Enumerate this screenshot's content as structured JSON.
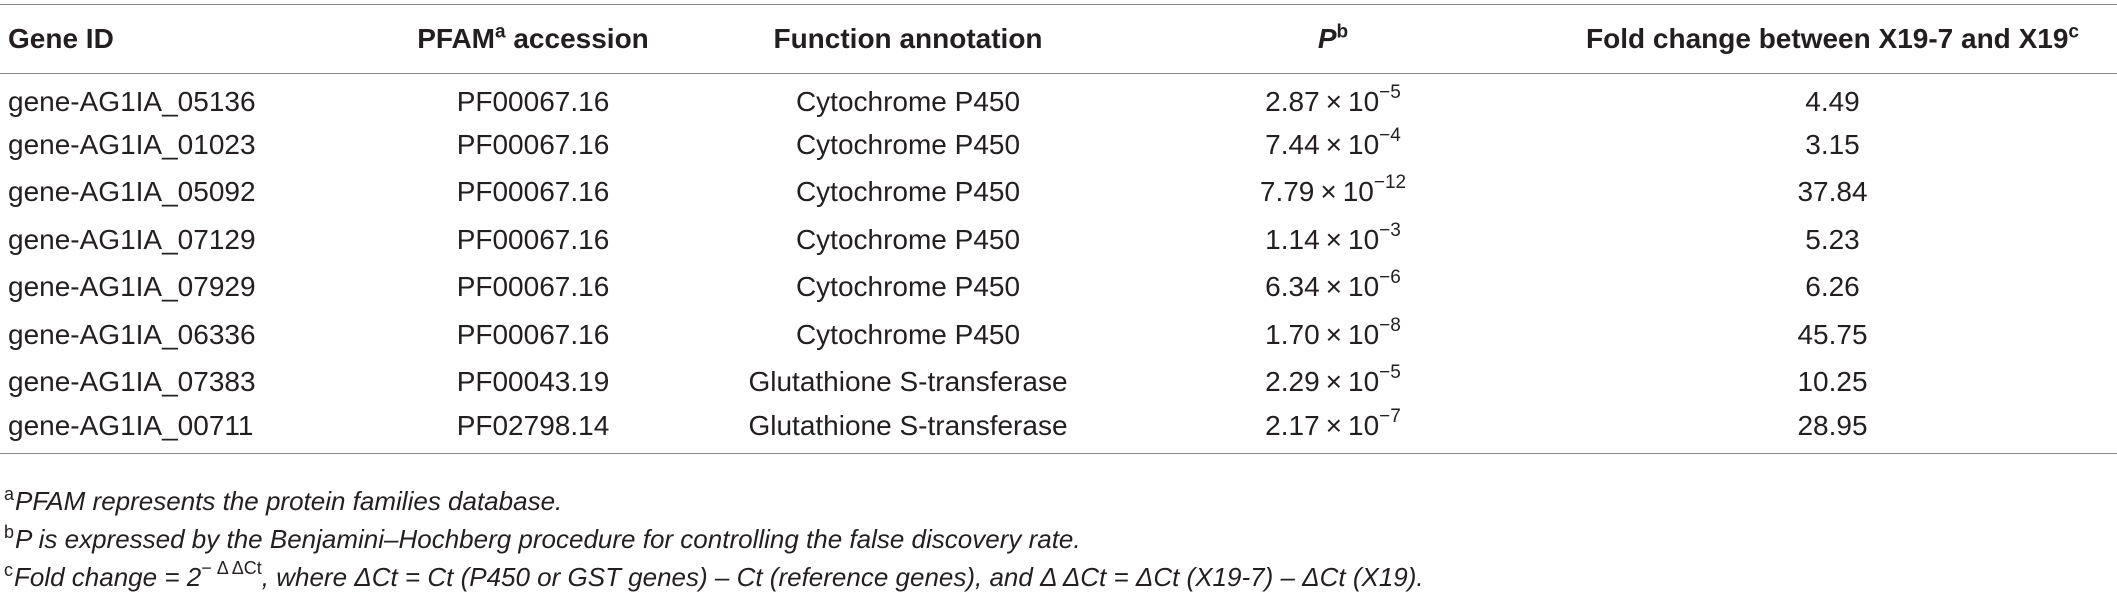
{
  "table": {
    "headers": {
      "gene_id": "Gene ID",
      "pfam": "PFAM",
      "pfam_sup": "a",
      "pfam_suffix": " accession",
      "function": "Function annotation",
      "p": "P",
      "p_sup": "b",
      "fold": "Fold change between X19-7 and X19",
      "fold_sup": "c"
    },
    "rows": [
      {
        "gene": "gene-AG1IA_05136",
        "pfam": "PF00067.16",
        "func": "Cytochrome P450",
        "p_mant": "2.87",
        "p_exp": "−5",
        "fold": "4.49"
      },
      {
        "gene": "gene-AG1IA_01023",
        "pfam": "PF00067.16",
        "func": "Cytochrome P450",
        "p_mant": "7.44",
        "p_exp": "−4",
        "fold": "3.15"
      },
      {
        "gene": "gene-AG1IA_05092",
        "pfam": "PF00067.16",
        "func": "Cytochrome P450",
        "p_mant": "7.79",
        "p_exp": "−12",
        "fold": "37.84"
      },
      {
        "gene": "gene-AG1IA_07129",
        "pfam": "PF00067.16",
        "func": "Cytochrome P450",
        "p_mant": "1.14",
        "p_exp": "−3",
        "fold": "5.23"
      },
      {
        "gene": "gene-AG1IA_07929",
        "pfam": "PF00067.16",
        "func": "Cytochrome P450",
        "p_mant": "6.34",
        "p_exp": "−6",
        "fold": "6.26"
      },
      {
        "gene": "gene-AG1IA_06336",
        "pfam": "PF00067.16",
        "func": "Cytochrome P450",
        "p_mant": "1.70",
        "p_exp": "−8",
        "fold": "45.75"
      },
      {
        "gene": "gene-AG1IA_07383",
        "pfam": "PF00043.19",
        "func": "Glutathione S-transferase",
        "p_mant": "2.29",
        "p_exp": "−5",
        "fold": "10.25"
      },
      {
        "gene": "gene-AG1IA_00711",
        "pfam": "PF02798.14",
        "func": "Glutathione S-transferase",
        "p_mant": "2.17",
        "p_exp": "−7",
        "fold": "28.95"
      }
    ],
    "times_symbol": "×",
    "base": "10"
  },
  "footnotes": {
    "a_mark": "a",
    "a_text": "PFAM represents the protein families database.",
    "b_mark": "b",
    "b_text": "P is expressed by the Benjamini–Hochberg procedure for controlling the false discovery rate.",
    "c_mark": "c",
    "c_text_1": "Fold change = 2",
    "c_exp": "− Δ ΔCt",
    "c_text_2": ", where ΔCt = Ct (P450 or GST genes) – Ct (reference genes), and Δ ΔCt = ΔCt (X19-7) – ΔCt (X19)."
  }
}
